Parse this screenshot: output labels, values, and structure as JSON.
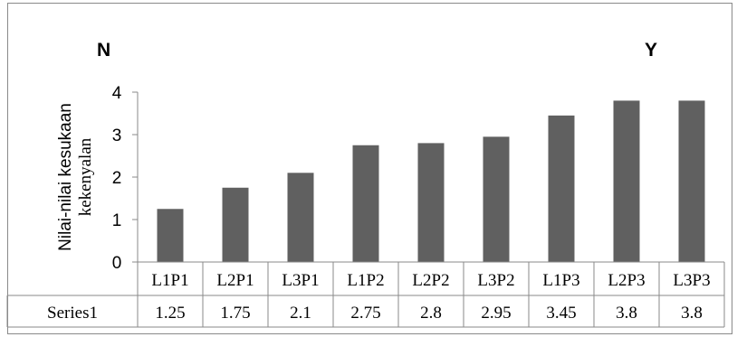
{
  "chart_data": {
    "type": "bar",
    "title_left": "N",
    "title_right": "Y",
    "ylabel": "Nilai-nilai kesukaan",
    "ylabel2": "kekenyalan",
    "categories": [
      "L1P1",
      "L2P1",
      "L3P1",
      "L1P2",
      "L2P2",
      "L3P2",
      "L1P3",
      "L2P3",
      "L3P3"
    ],
    "series": [
      {
        "name": "Series1",
        "values": [
          1.25,
          1.75,
          2.1,
          2.75,
          2.8,
          2.95,
          3.45,
          3.8,
          3.8
        ],
        "labels": [
          "1.25",
          "1.75",
          "2.1",
          "2.75",
          "2.8",
          "2.95",
          "3.45",
          "3.8",
          "3.8"
        ]
      }
    ],
    "ylim": [
      0,
      4
    ],
    "yticks": [
      0,
      1,
      2,
      3,
      4
    ],
    "grid": false,
    "data_table": true,
    "bar_color": "#606060"
  }
}
